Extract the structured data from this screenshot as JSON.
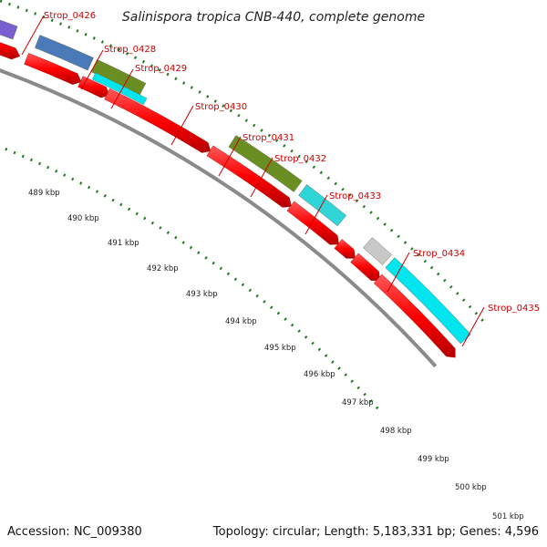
{
  "title": "Salinispora tropica CNB-440, complete genome",
  "accession_text": "Accession: NC_009380",
  "summary_text": "Topology: circular; Length: 5,183,331 bp; Genes: 4,596",
  "colors": {
    "cds_red": "#ff0000",
    "cds_cyan": "#00e5ee",
    "cog_cyan": "#30d5d8",
    "cog_orange": "#ff8c00",
    "cog_purple": "#7a5fd0",
    "cog_steelblue": "#4a7ab8",
    "cog_olive": "#6b8e23",
    "cog_gray": "#c8c8c8",
    "backbone": "#8a8a8a",
    "tick_green": "#1e7a1e"
  },
  "gene_labels": [
    "Strop_0426",
    "Strop_0428",
    "Strop_0429",
    "Strop_0430",
    "Strop_0431",
    "Strop_0432",
    "Strop_0433",
    "Strop_0434",
    "Strop_0435"
  ],
  "kbp_labels": [
    "489 kbp",
    "490 kbp",
    "491 kbp",
    "492 kbp",
    "493 kbp",
    "494 kbp",
    "495 kbp",
    "496 kbp",
    "497 kbp",
    "498 kbp",
    "499 kbp",
    "500 kbp",
    "501 kbp"
  ]
}
